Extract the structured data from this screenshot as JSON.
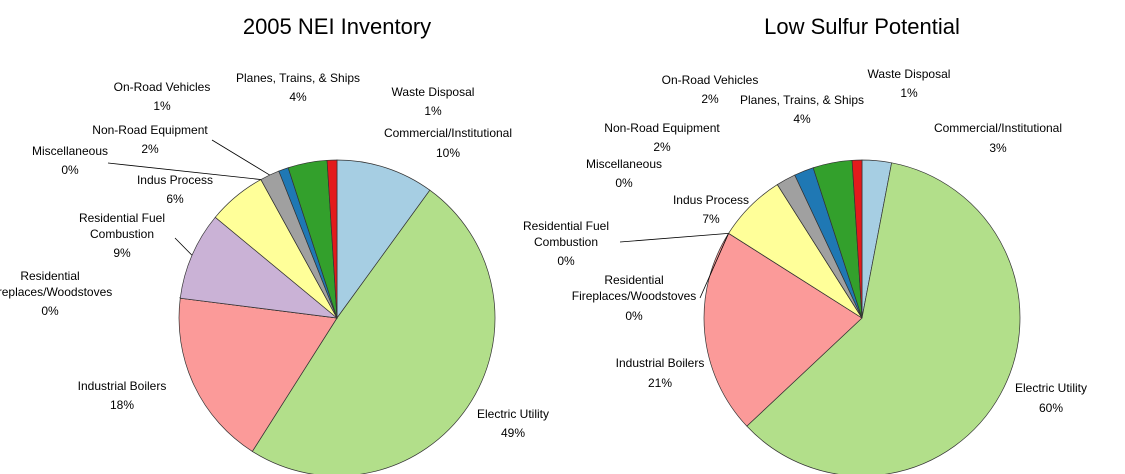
{
  "chart_data": [
    {
      "type": "pie",
      "title": "2005 NEI Inventory",
      "categories": [
        "Commercial/Institutional",
        "Electric Utility",
        "Industrial Boilers",
        "Residential Fireplaces/Woodstoves",
        "Residential Fuel Combustion",
        "Indus Process",
        "Miscellaneous",
        "Non-Road Equipment",
        "On-Road Vehicles",
        "Planes, Trains, & Ships",
        "Waste Disposal"
      ],
      "values": [
        10,
        49,
        18,
        0,
        9,
        6,
        0,
        2,
        1,
        4,
        1
      ],
      "value_labels": [
        "10%",
        "49%",
        "18%",
        "0%",
        "9%",
        "6%",
        "0%",
        "2%",
        "1%",
        "4%",
        "1%"
      ],
      "colors": [
        "#a6cee3",
        "#b2df8a",
        "#fb9a99",
        "#f5deb3",
        "#cab2d6",
        "#ffff99",
        "#fdbf6f",
        "#a0a0a0",
        "#1f78b4",
        "#33a02c",
        "#e31a1c"
      ]
    },
    {
      "type": "pie",
      "title": "Low Sulfur Potential",
      "categories": [
        "Commercial/Institutional",
        "Electric Utility",
        "Industrial Boilers",
        "Residential Fireplaces/Woodstoves",
        "Residential Fuel Combustion",
        "Indus Process",
        "Miscellaneous",
        "Non-Road Equipment",
        "On-Road Vehicles",
        "Planes, Trains, & Ships",
        "Waste Disposal"
      ],
      "values": [
        3,
        60,
        21,
        0,
        0,
        7,
        0,
        2,
        2,
        4,
        1
      ],
      "value_labels": [
        "3%",
        "60%",
        "21%",
        "0%",
        "0%",
        "7%",
        "0%",
        "2%",
        "2%",
        "4%",
        "1%"
      ],
      "colors": [
        "#a6cee3",
        "#b2df8a",
        "#fb9a99",
        "#f5deb3",
        "#cab2d6",
        "#ffff99",
        "#fdbf6f",
        "#a0a0a0",
        "#1f78b4",
        "#33a02c",
        "#e31a1c"
      ]
    }
  ]
}
